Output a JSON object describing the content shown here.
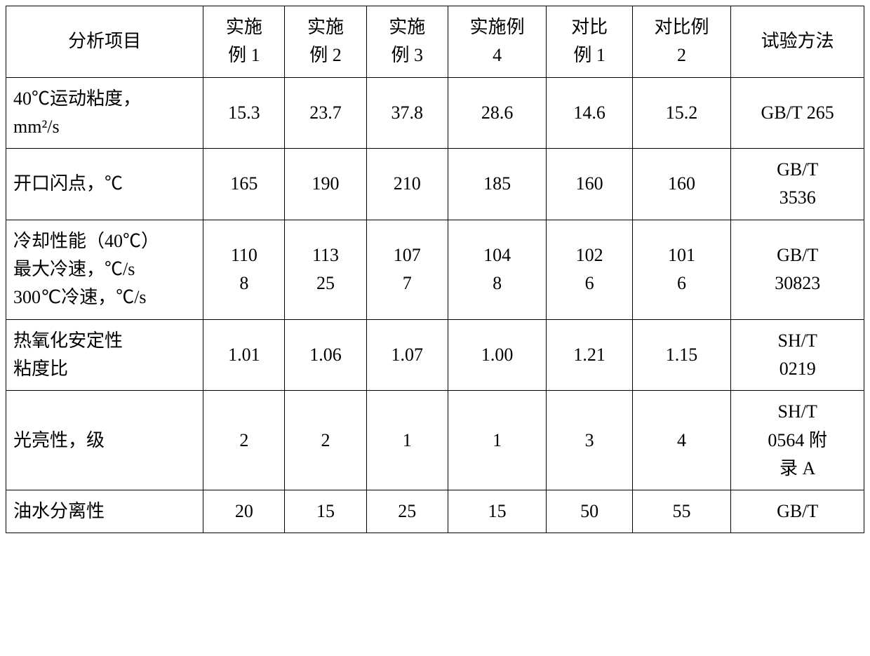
{
  "table": {
    "type": "table",
    "border_color": "#000000",
    "background_color": "#ffffff",
    "text_color": "#000000",
    "font_family": "Times New Roman / SimSun",
    "base_fontsize": 26,
    "column_widths_pct": [
      23,
      9.5,
      9.5,
      9.5,
      11.5,
      10,
      11.5,
      15.5
    ],
    "header": {
      "analysis_item": "分析项目",
      "ex1": "实施\n例 1",
      "ex2": "实施\n例 2",
      "ex3": "实施\n例 3",
      "ex4": "实施例\n4",
      "cmp1": "对比\n例 1",
      "cmp2": "对比例\n2",
      "method": "试验方法"
    },
    "rows": [
      {
        "label": "40℃运动粘度，\nmm²/s",
        "ex1": "15.3",
        "ex2": "23.7",
        "ex3": "37.8",
        "ex4": "28.6",
        "cmp1": "14.6",
        "cmp2": "15.2",
        "method": "GB/T 265"
      },
      {
        "label": "开口闪点，℃",
        "ex1": "165",
        "ex2": "190",
        "ex3": "210",
        "ex4": "185",
        "cmp1": "160",
        "cmp2": "160",
        "method": "GB/T\n3536"
      },
      {
        "label": "冷却性能（40℃）\n最大冷速，℃/s\n300℃冷速，℃/s",
        "ex1": "110\n8",
        "ex2": "113\n25",
        "ex3": "107\n7",
        "ex4": "104\n8",
        "cmp1": "102\n6",
        "cmp2": "101\n6",
        "method": "GB/T\n30823"
      },
      {
        "label": "热氧化安定性\n粘度比",
        "ex1": "1.01",
        "ex2": "1.06",
        "ex3": "1.07",
        "ex4": "1.00",
        "cmp1": "1.21",
        "cmp2": "1.15",
        "method": "SH/T\n0219"
      },
      {
        "label": "光亮性，级",
        "ex1": "2",
        "ex2": "2",
        "ex3": "1",
        "ex4": "1",
        "cmp1": "3",
        "cmp2": "4",
        "method": "SH/T\n0564 附\n录 A"
      },
      {
        "label": "油水分离性",
        "ex1": "20",
        "ex2": "15",
        "ex3": "25",
        "ex4": "15",
        "cmp1": "50",
        "cmp2": "55",
        "method": "GB/T"
      }
    ]
  }
}
